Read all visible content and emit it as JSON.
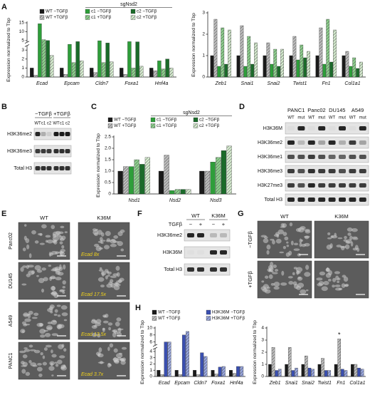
{
  "panel_labels": [
    "A",
    "B",
    "C",
    "D",
    "E",
    "F",
    "G",
    "H"
  ],
  "chart_data": [
    {
      "type": "bar",
      "ylabel": "Expression normalized to Tbp",
      "legend_header": "sgNsd2",
      "categories": [
        "Ecad",
        "Epcam",
        "Cldn7",
        "Foxa1",
        "Hnf4a"
      ],
      "ylim": [
        0,
        15
      ],
      "ybreak": [
        3.5,
        4
      ],
      "yticks": [
        0,
        1,
        2,
        3,
        5,
        10,
        15
      ],
      "series": [
        {
          "name": "WT −TGFβ",
          "color": "#1a1a1a",
          "values": [
            1.0,
            1.0,
            1.0,
            1.0,
            1.0
          ]
        },
        {
          "name": "WT +TGFβ",
          "color": "#bdbdbd",
          "hatch": true,
          "values": [
            0.2,
            0.3,
            0.5,
            0.3,
            0.7
          ]
        },
        {
          "name": "c1 −TGFβ",
          "color": "#2e9e3a",
          "values": [
            14.5,
            3.7,
            4.9,
            4.4,
            1.8
          ]
        },
        {
          "name": "c1 +TGFβ",
          "color": "#8fd18f",
          "hatch": true,
          "values": [
            5.5,
            1.6,
            1.6,
            1.0,
            0.9
          ]
        },
        {
          "name": "c2 −TGFβ",
          "color": "#1b6b2a",
          "values": [
            5.0,
            4.4,
            3.9,
            4.3,
            2.0
          ]
        },
        {
          "name": "c2 +TGFβ",
          "color": "#d6ecd0",
          "hatch": true,
          "values": [
            2.4,
            1.8,
            1.7,
            1.2,
            1.0
          ]
        }
      ]
    },
    {
      "type": "bar",
      "ylabel": "Expression normalized to Tbp",
      "categories": [
        "Zeb1",
        "Snai1",
        "Snai2",
        "Twist1",
        "Fn1",
        "Col1a1"
      ],
      "ylim": [
        0,
        3
      ],
      "yticks": [
        0,
        1,
        2,
        3
      ],
      "series": [
        {
          "color": "#1a1a1a",
          "values": [
            1.0,
            1.0,
            1.0,
            1.0,
            1.0,
            1.0
          ]
        },
        {
          "color": "#bdbdbd",
          "hatch": true,
          "values": [
            2.7,
            2.4,
            1.6,
            1.9,
            2.3,
            1.2
          ]
        },
        {
          "color": "#2e9e3a",
          "values": [
            0.5,
            0.5,
            0.6,
            0.8,
            0.6,
            0.5
          ]
        },
        {
          "color": "#8fd18f",
          "hatch": true,
          "values": [
            2.3,
            1.9,
            1.3,
            1.5,
            2.7,
            0.9
          ]
        },
        {
          "color": "#1b6b2a",
          "values": [
            0.6,
            0.6,
            0.5,
            0.9,
            0.7,
            0.4
          ]
        },
        {
          "color": "#d6ecd0",
          "hatch": true,
          "values": [
            2.2,
            1.6,
            1.3,
            1.2,
            2.2,
            0.7
          ]
        }
      ]
    },
    {
      "type": "bar",
      "ylabel": "Expression normalized to Tbp",
      "legend_header": "sgNsd2",
      "categories": [
        "Nsd1",
        "Nsd2",
        "Nsd3"
      ],
      "ylim": [
        0,
        2.5
      ],
      "yticks": [
        0,
        0.5,
        {
          "value": 1,
          "label": "1.0"
        },
        1.5,
        {
          "value": 2,
          "label": "2.0"
        },
        2.5
      ],
      "series": [
        {
          "name": "WT −TGFβ",
          "color": "#1a1a1a",
          "values": [
            1.0,
            1.0,
            1.0
          ]
        },
        {
          "name": "WT +TGFβ",
          "color": "#bdbdbd",
          "hatch": true,
          "values": [
            1.2,
            1.7,
            1.0
          ]
        },
        {
          "name": "c1 −TGFβ",
          "color": "#2e9e3a",
          "values": [
            1.2,
            0.15,
            1.4
          ]
        },
        {
          "name": "c1 +TGFβ",
          "color": "#8fd18f",
          "hatch": true,
          "values": [
            1.5,
            0.2,
            1.6
          ]
        },
        {
          "name": "c2 −TGFβ",
          "color": "#1b6b2a",
          "values": [
            1.3,
            0.2,
            1.9
          ]
        },
        {
          "name": "c2 +TGFβ",
          "color": "#d6ecd0",
          "hatch": true,
          "values": [
            1.6,
            0.2,
            2.1
          ]
        }
      ]
    },
    {
      "type": "bar",
      "ylabel": "Expression normalized to Tbp",
      "categories": [
        "Ecad",
        "Epcam",
        "Cldn7",
        "Foxa1",
        "Hnf4a"
      ],
      "ylim": [
        0,
        10
      ],
      "ybreak": [
        4.5,
        5
      ],
      "yticks": [
        0,
        1,
        2,
        3,
        4,
        6,
        8,
        10
      ],
      "series": [
        {
          "name": "WT −TGFβ",
          "color": "#1a1a1a",
          "values": [
            1.0,
            1.0,
            1.0,
            1.0,
            1.0
          ]
        },
        {
          "name": "WT +TGFβ",
          "color": "#bdbdbd",
          "hatch": true,
          "values": [
            0.3,
            0.3,
            0.3,
            0.4,
            0.5
          ]
        },
        {
          "name": "H3K36M −TGFβ",
          "color": "#3a4fb0",
          "values": [
            6.0,
            8.0,
            3.8,
            1.5,
            1.6
          ]
        },
        {
          "name": "H3K36M +TGFβ",
          "color": "#9aa8e0",
          "hatch": true,
          "values": [
            6.0,
            9.0,
            3.2,
            1.6,
            1.6
          ]
        }
      ]
    },
    {
      "type": "bar",
      "ylabel": "Expression normalized to Tbp",
      "annotation": "*",
      "categories": [
        "Zeb1",
        "Snai1",
        "Snai2",
        "Twist1",
        "Fn1",
        "Col1a1"
      ],
      "ylim": [
        0,
        4
      ],
      "yticks": [
        0,
        1,
        2,
        3,
        4
      ],
      "series": [
        {
          "color": "#1a1a1a",
          "values": [
            1.0,
            1.0,
            1.0,
            1.0,
            1.0,
            1.0
          ]
        },
        {
          "color": "#bdbdbd",
          "hatch": true,
          "values": [
            2.4,
            2.4,
            1.7,
            1.5,
            3.1,
            1.0
          ]
        },
        {
          "color": "#3a4fb0",
          "values": [
            0.5,
            0.5,
            0.7,
            0.5,
            0.6,
            0.7
          ]
        },
        {
          "color": "#9aa8e0",
          "hatch": true,
          "values": [
            0.6,
            0.7,
            0.6,
            0.5,
            0.5,
            0.6
          ]
        }
      ]
    }
  ],
  "blot_B": {
    "groups": [
      "−TGFβ",
      "+TGFβ"
    ],
    "lanes": [
      "WT",
      "c1",
      "c2",
      "WT",
      "c1",
      "c2"
    ],
    "rows": [
      "H3K36me2",
      "H3K36me3",
      "Total H3"
    ]
  },
  "blot_D": {
    "cell_lines": [
      "PANC1",
      "Panc02",
      "DU145",
      "A549"
    ],
    "lanes": [
      "WT",
      "mut",
      "WT",
      "mut",
      "WT",
      "mut",
      "WT",
      "mut"
    ],
    "rows": [
      "H3K36M",
      "H3K36me2",
      "H3K36me1",
      "H3K36me3",
      "H3K27me3",
      "Total H3"
    ]
  },
  "blot_F": {
    "groups": [
      "WT",
      "K36M"
    ],
    "treatment_label": "TGFβ",
    "treatment": [
      "−",
      "+",
      "−",
      "+"
    ],
    "rows": [
      "H3K36me2",
      "H3K36M",
      "Total H3"
    ]
  },
  "micrographs_E": {
    "columns": [
      "WT",
      "K36M"
    ],
    "rows": [
      "Panc02",
      "DU145",
      "A549",
      "PANC1"
    ],
    "annotations": [
      "Ecad 8x",
      "Ecad 17.5x",
      "Ecad 13.5x",
      "Ecad 3.7x"
    ]
  },
  "micrographs_G": {
    "columns": [
      "WT",
      "K36M"
    ],
    "rows": [
      "−TGFβ",
      "+TGFβ"
    ]
  }
}
